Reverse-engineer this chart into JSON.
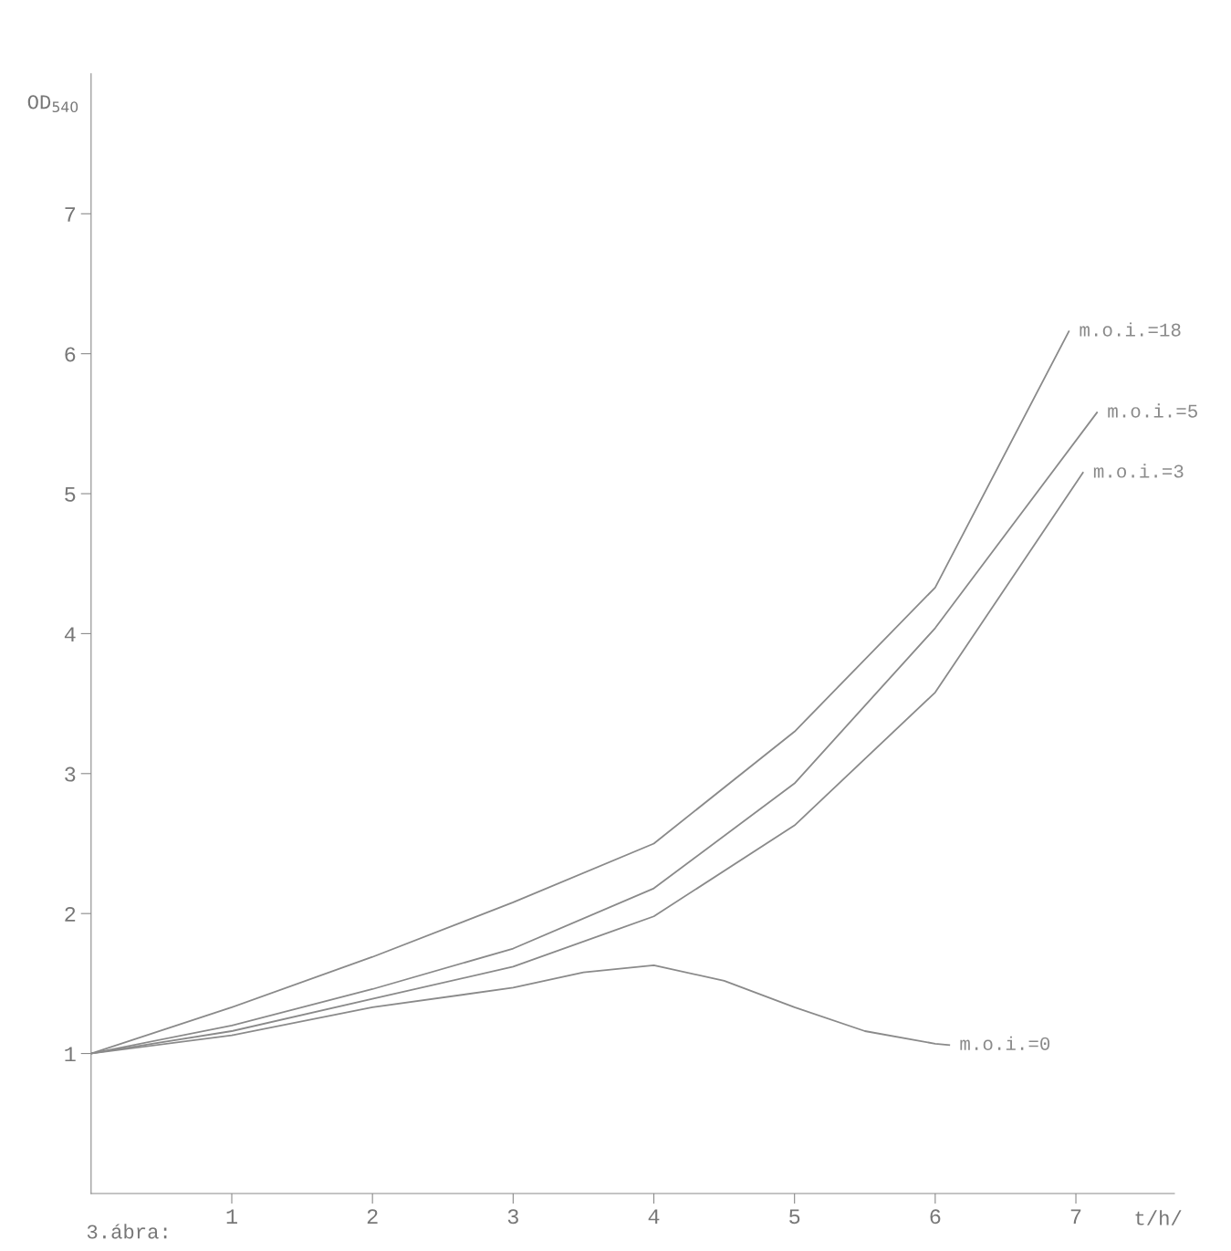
{
  "chart_data": {
    "type": "line",
    "xlabel": "t/h/",
    "ylabel": "OD$_{540}$",
    "x": [
      0,
      1,
      2,
      3,
      4,
      5,
      6,
      6.95
    ],
    "series": [
      {
        "name": "m.o.i.=18",
        "color": "#8a8a8a",
        "values": [
          1,
          1.33,
          1.69,
          2.08,
          2.5,
          3.3,
          4.33,
          6.16
        ]
      },
      {
        "name": "m.o.i.=5",
        "color": "#8a8a8a",
        "x": [
          0,
          1,
          2,
          3,
          4,
          5,
          6,
          7.15
        ],
        "values": [
          1,
          1.2,
          1.46,
          1.75,
          2.18,
          2.93,
          4.04,
          5.58
        ]
      },
      {
        "name": "m.o.i.=3",
        "color": "#8a8a8a",
        "x": [
          0,
          1,
          2,
          3,
          4,
          5,
          6,
          7.05
        ],
        "values": [
          1,
          1.16,
          1.39,
          1.62,
          1.98,
          2.63,
          3.58,
          5.15
        ]
      },
      {
        "name": "m.o.i.=0",
        "color": "#8a8a8a",
        "x": [
          0,
          1,
          2,
          3,
          3.5,
          4,
          4.5,
          5,
          5.5,
          6,
          6.1
        ],
        "values": [
          1,
          1.13,
          1.33,
          1.47,
          1.58,
          1.63,
          1.52,
          1.33,
          1.16,
          1.07,
          1.06
        ]
      }
    ],
    "xlim": [
      0,
      7.7
    ],
    "ylim": [
      0,
      8
    ],
    "xticks": [
      1,
      2,
      3,
      4,
      5,
      6,
      7
    ],
    "yticks": [
      1,
      2,
      3,
      4,
      5,
      6,
      7
    ],
    "grid": false,
    "legend": false,
    "marker": "none",
    "line_style": "solid",
    "annotations": [
      "3.ábra:"
    ]
  }
}
